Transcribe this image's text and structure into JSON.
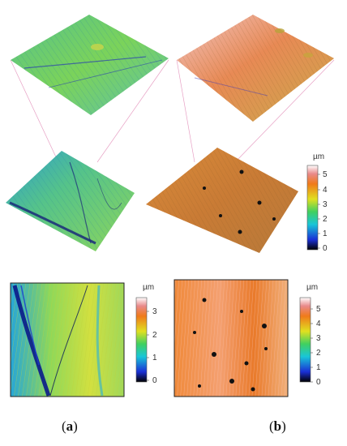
{
  "panels": [
    {
      "id": "a",
      "label_open": "(",
      "label_letter": "a",
      "label_close": ")",
      "colorbar_unit": "µm",
      "colorbar_ticks": [
        "3",
        "2",
        "1",
        "0"
      ]
    },
    {
      "id": "b",
      "label_open": "(",
      "label_letter": "b",
      "label_close": ")",
      "colorbar_unit": "µm",
      "colorbar_ticks": [
        "5",
        "4",
        "3",
        "2",
        "1",
        "0"
      ]
    }
  ],
  "shared_colorbar": {
    "unit": "µm",
    "ticks": [
      "5",
      "4",
      "3",
      "2",
      "1",
      "0"
    ]
  },
  "colors": {
    "a_surface": "#6fd17a",
    "b_surface": "#e08a3c",
    "guide_line": "#e7a0c4"
  }
}
